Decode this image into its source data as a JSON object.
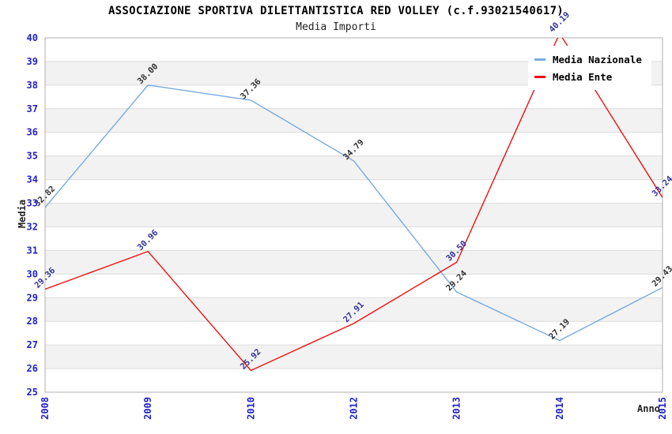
{
  "chart_data": {
    "type": "line",
    "title": "ASSOCIAZIONE SPORTIVA DILETTANTISTICA RED VOLLEY (c.f.93021540617)",
    "subtitle": "Media Importi",
    "xlabel": "Anno",
    "ylabel": "Media",
    "categories": [
      "2008",
      "2009",
      "2010",
      "2012",
      "2013",
      "2014",
      "2015"
    ],
    "series": [
      {
        "name": "Media Nazionale",
        "color": "#78aadc",
        "label_color": "#333333",
        "values": [
          32.82,
          38.0,
          37.36,
          34.79,
          29.24,
          27.19,
          29.43
        ]
      },
      {
        "name": "Media Ente",
        "color": "#ee1111",
        "label_color": "#333399",
        "values": [
          29.36,
          30.96,
          25.92,
          27.91,
          30.5,
          40.19,
          33.24
        ]
      }
    ],
    "ylim": [
      25,
      40
    ],
    "ytick_step": 1,
    "grid": true,
    "stripes": true,
    "legend_position": "top-right",
    "styles": {
      "tick_color": "#2222cc",
      "grid_color": "#dcdcdc",
      "stripe_color": "#f2f2f2",
      "border_color": "#b0b0b0",
      "background": "#ffffff"
    }
  }
}
